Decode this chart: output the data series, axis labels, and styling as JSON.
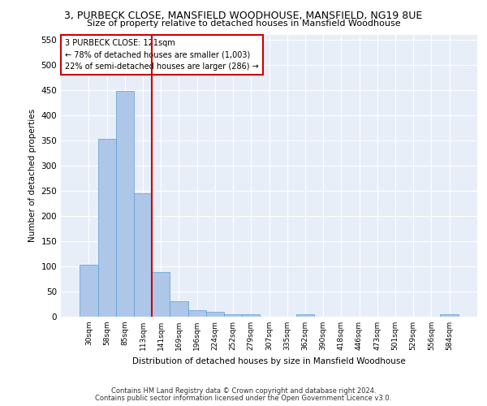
{
  "title1": "3, PURBECK CLOSE, MANSFIELD WOODHOUSE, MANSFIELD, NG19 8UE",
  "title2": "Size of property relative to detached houses in Mansfield Woodhouse",
  "xlabel": "Distribution of detached houses by size in Mansfield Woodhouse",
  "ylabel": "Number of detached properties",
  "categories": [
    "30sqm",
    "58sqm",
    "85sqm",
    "113sqm",
    "141sqm",
    "169sqm",
    "196sqm",
    "224sqm",
    "252sqm",
    "279sqm",
    "307sqm",
    "335sqm",
    "362sqm",
    "390sqm",
    "418sqm",
    "446sqm",
    "473sqm",
    "501sqm",
    "529sqm",
    "556sqm",
    "584sqm"
  ],
  "values": [
    103,
    353,
    448,
    245,
    88,
    30,
    13,
    9,
    5,
    5,
    0,
    0,
    5,
    0,
    0,
    0,
    0,
    0,
    0,
    0,
    5
  ],
  "bar_color": "#aec6e8",
  "bar_edge_color": "#5a9fd4",
  "vline_color": "#cc0000",
  "vline_x": 3.5,
  "annotation_text": "3 PURBECK CLOSE: 121sqm\n← 78% of detached houses are smaller (1,003)\n22% of semi-detached houses are larger (286) →",
  "annotation_box_color": "#ffffff",
  "annotation_box_edge": "#cc0000",
  "ylim": [
    0,
    560
  ],
  "yticks": [
    0,
    50,
    100,
    150,
    200,
    250,
    300,
    350,
    400,
    450,
    500,
    550
  ],
  "background_color": "#e8eef8",
  "footer_line1": "Contains HM Land Registry data © Crown copyright and database right 2024.",
  "footer_line2": "Contains public sector information licensed under the Open Government Licence v3.0."
}
